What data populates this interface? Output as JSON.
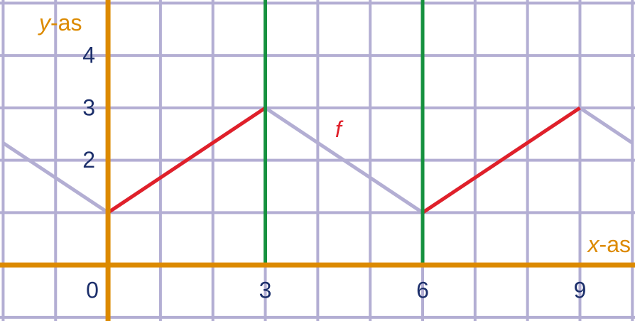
{
  "chart_data": {
    "type": "line",
    "xlim": [
      -2.06,
      10.05
    ],
    "ylim": [
      -1.07,
      5.06
    ],
    "xticks": [
      0,
      3,
      6,
      9
    ],
    "yticks": [
      2,
      3,
      4
    ],
    "xgrid": [
      -2,
      -1,
      0,
      1,
      2,
      3,
      4,
      5,
      6,
      7,
      8,
      9,
      10
    ],
    "ygrid": [
      -1,
      0,
      1,
      2,
      3,
      4,
      5
    ],
    "grid_color": "#b3aed3",
    "axis_color": "#dc8a00",
    "tick_color": "#1c2f6b",
    "xlabel_var": "x",
    "xlabel_suffix": "-as",
    "ylabel_var": "y",
    "ylabel_suffix": "-as",
    "annotation": "f",
    "annotation_x": 4.5,
    "annotation_y": 2.5,
    "annotation_color": "#e0202a",
    "vlines": [
      3,
      6
    ],
    "vline_color": "#16913f",
    "series": [
      {
        "color": "#b3aed3",
        "x": [
          -2,
          0,
          3,
          6,
          9,
          10
        ],
        "values": [
          2.33,
          1,
          3,
          1,
          3,
          2.33
        ]
      },
      {
        "color": "#e0202a",
        "x": [
          0,
          3
        ],
        "values": [
          1,
          3
        ]
      },
      {
        "color": "#e0202a",
        "x": [
          6,
          9
        ],
        "values": [
          1,
          3
        ]
      }
    ]
  }
}
